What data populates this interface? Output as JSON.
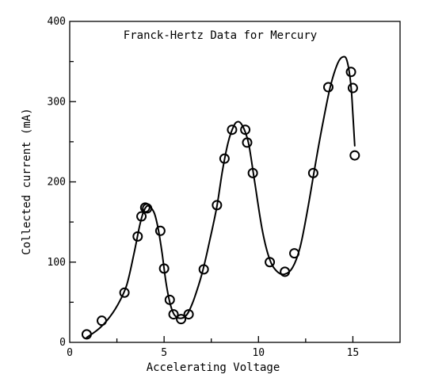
{
  "chart_data": {
    "type": "scatter",
    "title": "Franck-Hertz Data for Mercury",
    "xlabel": "Accelerating Voltage",
    "ylabel": "Collected current (mA)",
    "xlim": [
      0,
      17.5
    ],
    "ylim": [
      0,
      400
    ],
    "xticks": [
      0,
      5,
      10,
      15
    ],
    "yticks": [
      0,
      100,
      200,
      300,
      400
    ],
    "grid": false,
    "legend": "none",
    "series": [
      {
        "values": [
          {
            "x": 0.9,
            "y": 10
          },
          {
            "x": 1.7,
            "y": 27
          },
          {
            "x": 2.9,
            "y": 62
          },
          {
            "x": 3.6,
            "y": 132
          },
          {
            "x": 3.8,
            "y": 157
          },
          {
            "x": 4.0,
            "y": 168
          },
          {
            "x": 4.1,
            "y": 167
          },
          {
            "x": 4.8,
            "y": 139
          },
          {
            "x": 5.0,
            "y": 92
          },
          {
            "x": 5.3,
            "y": 53
          },
          {
            "x": 5.5,
            "y": 35
          },
          {
            "x": 5.9,
            "y": 29
          },
          {
            "x": 6.3,
            "y": 35
          },
          {
            "x": 7.1,
            "y": 91
          },
          {
            "x": 7.8,
            "y": 171
          },
          {
            "x": 8.2,
            "y": 229
          },
          {
            "x": 8.6,
            "y": 265
          },
          {
            "x": 9.3,
            "y": 265
          },
          {
            "x": 9.4,
            "y": 249
          },
          {
            "x": 9.7,
            "y": 211
          },
          {
            "x": 10.6,
            "y": 100
          },
          {
            "x": 11.4,
            "y": 88
          },
          {
            "x": 11.9,
            "y": 111
          },
          {
            "x": 12.9,
            "y": 211
          },
          {
            "x": 13.7,
            "y": 318
          },
          {
            "x": 14.9,
            "y": 337
          },
          {
            "x": 15.0,
            "y": 317
          },
          {
            "x": 15.1,
            "y": 233
          }
        ]
      }
    ],
    "fit_curve": [
      [
        0.9,
        6
      ],
      [
        1.5,
        16
      ],
      [
        2.0,
        28
      ],
      [
        2.5,
        45
      ],
      [
        3.0,
        70
      ],
      [
        3.4,
        110
      ],
      [
        3.7,
        145
      ],
      [
        3.9,
        162
      ],
      [
        4.1,
        170
      ],
      [
        4.3,
        168
      ],
      [
        4.5,
        160
      ],
      [
        4.7,
        140
      ],
      [
        4.9,
        110
      ],
      [
        5.1,
        75
      ],
      [
        5.3,
        50
      ],
      [
        5.5,
        36
      ],
      [
        5.7,
        31
      ],
      [
        5.9,
        30
      ],
      [
        6.1,
        32
      ],
      [
        6.3,
        38
      ],
      [
        6.6,
        55
      ],
      [
        7.0,
        85
      ],
      [
        7.4,
        125
      ],
      [
        7.8,
        170
      ],
      [
        8.1,
        215
      ],
      [
        8.4,
        250
      ],
      [
        8.7,
        270
      ],
      [
        8.9,
        275
      ],
      [
        9.1,
        272
      ],
      [
        9.3,
        262
      ],
      [
        9.5,
        245
      ],
      [
        9.8,
        200
      ],
      [
        10.2,
        140
      ],
      [
        10.6,
        103
      ],
      [
        11.0,
        88
      ],
      [
        11.4,
        85
      ],
      [
        11.8,
        93
      ],
      [
        12.2,
        118
      ],
      [
        12.6,
        165
      ],
      [
        13.0,
        220
      ],
      [
        13.4,
        272
      ],
      [
        13.8,
        318
      ],
      [
        14.2,
        348
      ],
      [
        14.5,
        356
      ],
      [
        14.7,
        350
      ],
      [
        14.9,
        320
      ],
      [
        15.0,
        285
      ],
      [
        15.1,
        245
      ]
    ]
  }
}
